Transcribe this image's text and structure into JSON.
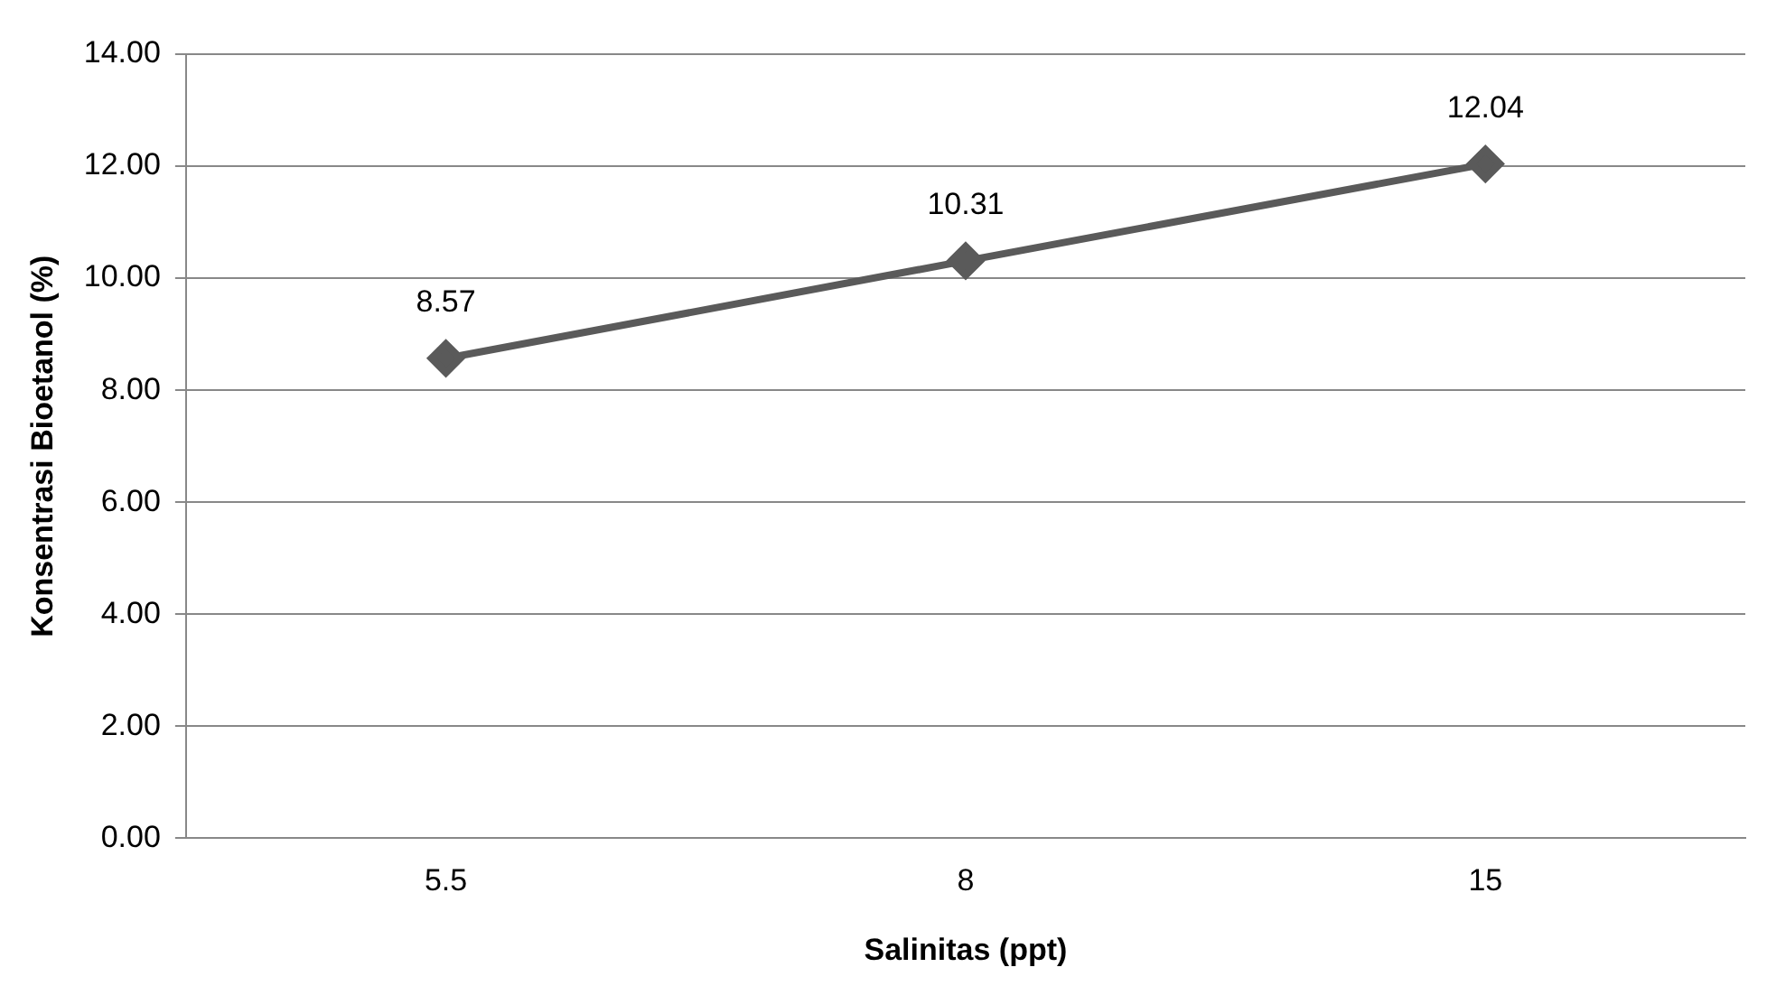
{
  "chart_data": {
    "type": "line",
    "xlabel": "Salinitas (ppt)",
    "ylabel": "Konsentrasi Bioetanol (%)",
    "categories": [
      "5.5",
      "8",
      "15"
    ],
    "series": [
      {
        "color": "#5a5a5a",
        "values": [
          8.57,
          10.31,
          12.04
        ]
      }
    ],
    "ylim": [
      0,
      14
    ],
    "yticks": [
      {
        "value": 0,
        "label": "0.00"
      },
      {
        "value": 2,
        "label": "2.00"
      },
      {
        "value": 4,
        "label": "4.00"
      },
      {
        "value": 6,
        "label": "6.00"
      },
      {
        "value": 8,
        "label": "8.00"
      },
      {
        "value": 10,
        "label": "10.00"
      },
      {
        "value": 12,
        "label": "12.00"
      },
      {
        "value": 14,
        "label": "14.00"
      }
    ],
    "grid": "y",
    "marker": "diamond",
    "line_style": "solid",
    "data_labels": true,
    "legend": false
  }
}
